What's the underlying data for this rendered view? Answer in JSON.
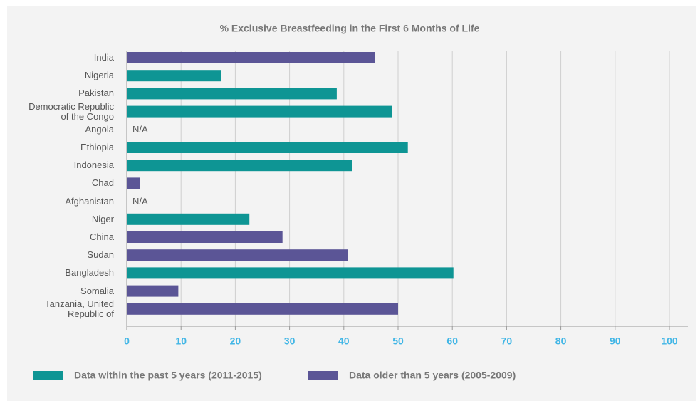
{
  "chart_data": {
    "type": "bar",
    "orientation": "horizontal",
    "title": "% Exclusive Breastfeeding in the First 6 Months of Life",
    "categories": [
      "India",
      "Nigeria",
      "Pakistan",
      "Democratic Republic\nof the Congo",
      "Angola",
      "Ethiopia",
      "Indonesia",
      "Chad",
      "Afghanistan",
      "Niger",
      "China",
      "Sudan",
      "Bangladesh",
      "Somalia",
      "Tanzania, United\nRepublic of"
    ],
    "series": [
      {
        "name": "Data within the past 5 years (2011-2015)",
        "color": "#0e9594",
        "values": [
          null,
          17.4,
          38.7,
          48.9,
          null,
          51.8,
          41.6,
          null,
          null,
          22.6,
          null,
          null,
          60.2,
          null,
          null
        ]
      },
      {
        "name": "Data older than 5 years (2005-2009)",
        "color": "#5b5596",
        "values": [
          45.8,
          null,
          null,
          null,
          null,
          null,
          null,
          2.4,
          null,
          null,
          28.7,
          40.8,
          null,
          9.5,
          50
        ]
      }
    ],
    "missing_label": "N/A",
    "xlim": [
      0,
      100
    ],
    "xticks": [
      0,
      10,
      20,
      30,
      40,
      50,
      60,
      70,
      80,
      90,
      100
    ],
    "grid": true
  }
}
